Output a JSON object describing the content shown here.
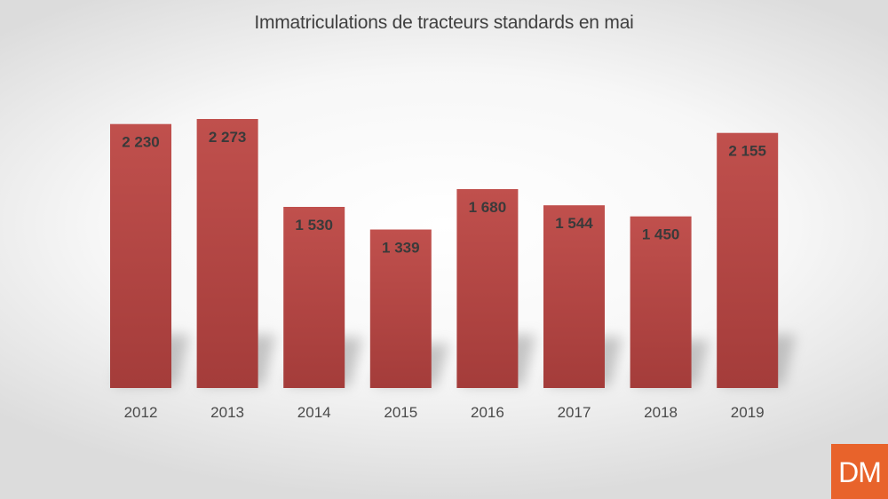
{
  "chart_data": {
    "type": "bar",
    "title": "Immatriculations de tracteurs standards en mai",
    "xlabel": "",
    "ylabel": "",
    "categories": [
      "2012",
      "2013",
      "2014",
      "2015",
      "2016",
      "2017",
      "2018",
      "2019"
    ],
    "values": [
      2230,
      2273,
      1530,
      1339,
      1680,
      1544,
      1450,
      2155
    ],
    "value_labels": [
      "2 230",
      "2 273",
      "1 530",
      "1 339",
      "1 680",
      "1 544",
      "1 450",
      "2 155"
    ],
    "ylim": [
      0,
      2500
    ],
    "grid": false,
    "legend": "none",
    "colors": {
      "bar_top": "#c0504d",
      "bar_bottom": "#a43c3a"
    }
  },
  "logo": {
    "text": "DM",
    "color": "#e8632b"
  }
}
